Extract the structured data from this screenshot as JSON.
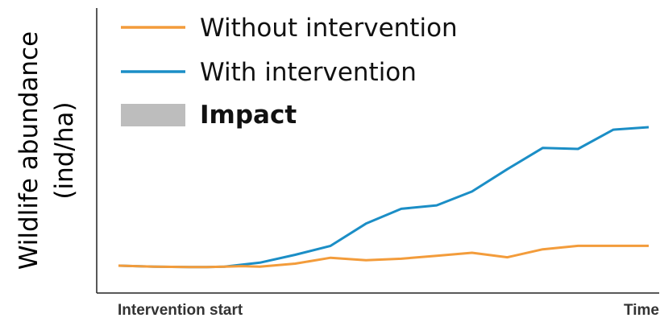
{
  "chart_data": {
    "type": "line",
    "title": "",
    "ylabel_line1": "Wildlife abundance",
    "ylabel_line2": "(ind/ha)",
    "x_start_label": "Intervention start",
    "x_end_label": "Time",
    "grid": false,
    "legend_position": "top-left",
    "x": [
      0,
      1,
      2,
      3,
      4,
      5,
      6,
      7,
      8,
      9,
      10,
      11,
      12,
      13,
      14,
      15,
      16,
      17
    ],
    "series": [
      {
        "name": "Without intervention",
        "color": "#f39c3b",
        "x": [
          0,
          1,
          2,
          2.5,
          3,
          3.5,
          4,
          5,
          6,
          7,
          8,
          9,
          10,
          11,
          12,
          13,
          14,
          15
        ],
        "values": [
          10,
          8,
          7,
          7,
          8,
          9,
          8,
          14,
          26,
          21,
          24,
          30,
          36,
          27,
          43,
          50,
          50,
          50
        ]
      },
      {
        "name": "With intervention",
        "color": "#1b8ec6",
        "x": [
          0,
          1,
          2,
          2.5,
          3,
          3.5,
          4,
          5,
          6,
          7,
          8,
          9,
          10,
          11,
          12,
          13,
          14,
          15
        ],
        "values": [
          10,
          8,
          7,
          7,
          8,
          12,
          16,
          32,
          50,
          95,
          125,
          132,
          160,
          205,
          248,
          246,
          285,
          290
        ]
      }
    ],
    "impact_legend": {
      "label": "Impact",
      "color": "#bdbdbd"
    }
  }
}
